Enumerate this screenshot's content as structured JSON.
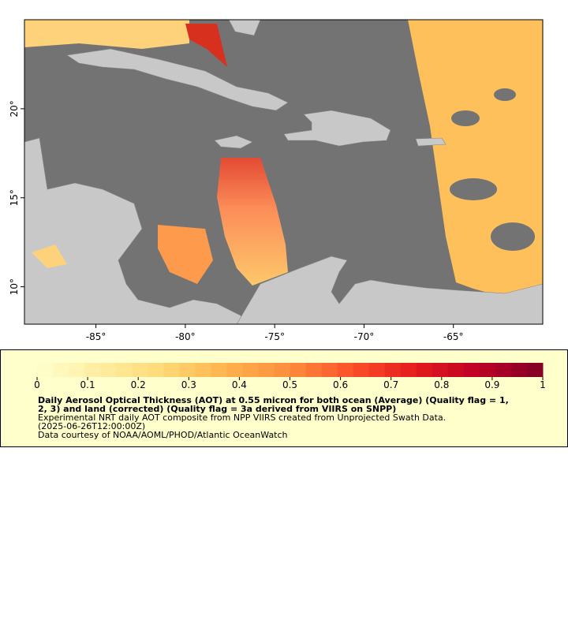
{
  "map": {
    "xlim": [
      -89,
      -60
    ],
    "ylim": [
      7.9,
      25
    ],
    "xticks": [
      {
        "value": -85,
        "label": "-85°"
      },
      {
        "value": -80,
        "label": "-80°"
      },
      {
        "value": -75,
        "label": "-75°"
      },
      {
        "value": -70,
        "label": "-70°"
      },
      {
        "value": -65,
        "label": "-65°"
      }
    ],
    "yticks": [
      {
        "value": 10,
        "label": "10°"
      },
      {
        "value": 15,
        "label": "15°"
      },
      {
        "value": 20,
        "label": "20°"
      }
    ]
  },
  "colorbar": {
    "range": [
      0,
      1
    ],
    "ticks": [
      0,
      0.1,
      0.2,
      0.3,
      0.4,
      0.5,
      0.6,
      0.7,
      0.8,
      0.9,
      1
    ],
    "colors": [
      "#ffffcc",
      "#ffeda0",
      "#fed976",
      "#feb24c",
      "#fd8d3c",
      "#fc4e2a",
      "#e31a1c",
      "#bd0026",
      "#800026"
    ]
  },
  "legend": {
    "title_lines": [
      "Daily Aerosol Optical Thickness (AOT) at 0.55 micron for both ocean (Average) (Quality flag = 1,",
      "2, 3) and land (corrected) (Quality flag = 3a derived from VIIRS on SNPP)"
    ],
    "lines": [
      "Experimental NRT daily AOT composite from NPP VIIRS created from Unprojected Swath Data.",
      "(2025-06-26T12:00:00Z)",
      "Data courtesy of NOAA/AOML/PHOD/Atlantic OceanWatch"
    ]
  }
}
